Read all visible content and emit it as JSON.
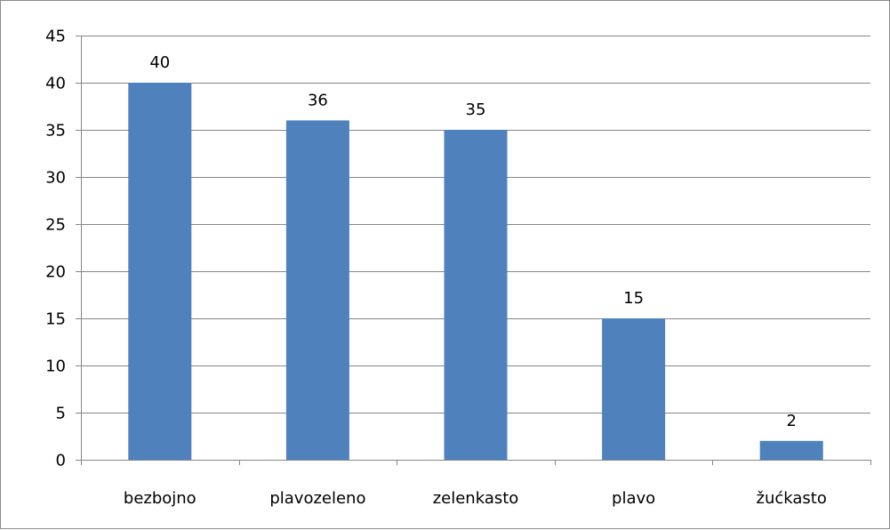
{
  "chart_data": {
    "type": "bar",
    "categories": [
      "bezbojno",
      "plavozeleno",
      "zelenkasto",
      "plavo",
      "žućkasto"
    ],
    "values": [
      40,
      36,
      35,
      15,
      2
    ],
    "data_labels": [
      "40",
      "36",
      "35",
      "15",
      "2"
    ],
    "title": "",
    "xlabel": "",
    "ylabel": "",
    "ylim": [
      0,
      45
    ],
    "yticks": [
      0,
      5,
      10,
      15,
      20,
      25,
      30,
      35,
      40,
      45
    ],
    "ytick_labels": [
      "0",
      "5",
      "10",
      "15",
      "20",
      "25",
      "30",
      "35",
      "40",
      "45"
    ],
    "grid": true,
    "legend": "none",
    "colors": {
      "bar": "#4f81bd",
      "grid": "#868686",
      "axis": "#868686",
      "border": "#8c8c8c"
    }
  }
}
